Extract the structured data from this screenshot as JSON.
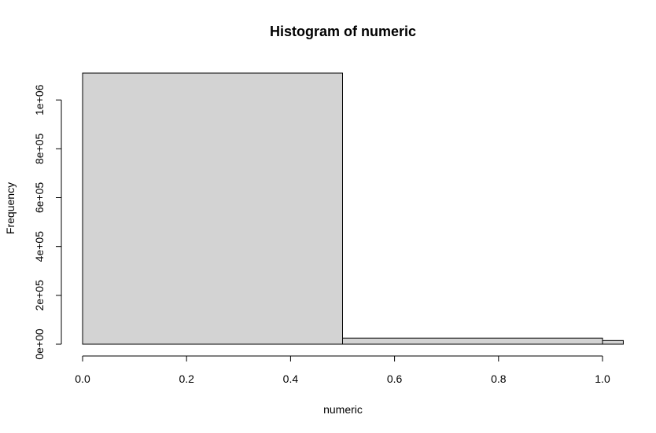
{
  "chart_data": {
    "type": "bar",
    "title": "Histogram of numeric",
    "xlabel": "numeric",
    "ylabel": "Frequency",
    "xlim": [
      0,
      1.04
    ],
    "ylim": [
      0,
      1110000
    ],
    "bins": [
      {
        "start": 0.0,
        "end": 0.5,
        "count": 1110000
      },
      {
        "start": 0.5,
        "end": 1.0,
        "count": 25000
      },
      {
        "start": 1.0,
        "end": 1.04,
        "count": 15000
      }
    ],
    "x_ticks": [
      {
        "value": 0.0,
        "label": "0.0"
      },
      {
        "value": 0.2,
        "label": "0.2"
      },
      {
        "value": 0.4,
        "label": "0.4"
      },
      {
        "value": 0.6,
        "label": "0.6"
      },
      {
        "value": 0.8,
        "label": "0.8"
      },
      {
        "value": 1.0,
        "label": "1.0"
      }
    ],
    "y_ticks": [
      {
        "value": 0,
        "label": "0e+00"
      },
      {
        "value": 200000,
        "label": "2e+05"
      },
      {
        "value": 400000,
        "label": "4e+05"
      },
      {
        "value": 600000,
        "label": "6e+05"
      },
      {
        "value": 800000,
        "label": "8e+05"
      },
      {
        "value": 1000000,
        "label": "1e+06"
      }
    ],
    "colors": {
      "bar_fill": "#d3d3d3",
      "bar_stroke": "#000000",
      "axis": "#000000"
    }
  }
}
